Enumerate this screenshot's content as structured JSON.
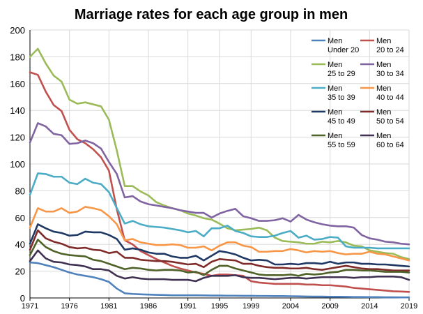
{
  "chart_data": {
    "type": "line",
    "title": "Marriage rates for each age group in men",
    "xlabel": "",
    "ylabel": "",
    "xlim": [
      1971,
      2019
    ],
    "ylim": [
      0,
      200
    ],
    "x_ticks": [
      1971,
      1976,
      1981,
      1986,
      1991,
      1995,
      1999,
      2004,
      2009,
      2014,
      2019
    ],
    "y_ticks": [
      0,
      20,
      40,
      60,
      80,
      100,
      120,
      140,
      160,
      180,
      200
    ],
    "grid": true,
    "legend_position": "top-right",
    "x": [
      1971,
      1972,
      1973,
      1974,
      1975,
      1976,
      1977,
      1978,
      1979,
      1980,
      1981,
      1982,
      1983,
      1984,
      1985,
      1986,
      1987,
      1988,
      1989,
      1990,
      1991,
      1992,
      1993,
      1994,
      1995,
      1996,
      1997,
      1998,
      1999,
      2000,
      2001,
      2002,
      2003,
      2004,
      2005,
      2006,
      2007,
      2008,
      2009,
      2010,
      2011,
      2012,
      2013,
      2014,
      2015,
      2016,
      2017,
      2018,
      2019
    ],
    "series": [
      {
        "name": "Men Under 20",
        "label_line1": "Men",
        "label_line2": "Under 20",
        "color": "#4f81bd",
        "values": [
          26.5,
          26.0,
          24.5,
          23.0,
          21.0,
          19.0,
          17.5,
          16.5,
          15.5,
          14.0,
          12.0,
          7.0,
          3.5,
          3.0,
          2.7,
          2.5,
          2.3,
          2.2,
          2.0,
          2.0,
          2.0,
          2.0,
          1.9,
          1.8,
          1.8,
          1.7,
          1.7,
          1.6,
          1.6,
          1.5,
          1.5,
          1.4,
          1.4,
          1.3,
          1.2,
          1.1,
          1.0,
          1.0,
          0.9,
          0.9,
          0.8,
          0.7,
          0.7,
          0.6,
          0.6,
          0.5,
          0.5,
          0.4,
          0.4
        ]
      },
      {
        "name": "Men 20 to 24",
        "label_line1": "Men",
        "label_line2": "20 to 24",
        "color": "#c0504d",
        "values": [
          168.5,
          166.5,
          154.0,
          144.0,
          139.5,
          125.5,
          118.5,
          115.5,
          111.0,
          105.0,
          95.0,
          66.0,
          43.0,
          40.0,
          35.0,
          32.0,
          29.0,
          26.5,
          24.0,
          22.0,
          20.5,
          19.0,
          18.0,
          16.5,
          17.5,
          17.5,
          17.0,
          16.5,
          12.5,
          11.5,
          11.0,
          10.5,
          10.5,
          10.5,
          10.5,
          10.0,
          10.0,
          9.5,
          9.5,
          9.0,
          8.5,
          7.5,
          7.0,
          6.5,
          6.0,
          5.5,
          5.0,
          4.8,
          4.5
        ]
      },
      {
        "name": "Men 25 to 29",
        "label_line1": "Men",
        "label_line2": "25 to 29",
        "color": "#9bbb59",
        "values": [
          180.0,
          186.0,
          175.0,
          166.0,
          161.5,
          148.0,
          145.0,
          146.0,
          144.5,
          143.0,
          133.0,
          110.0,
          83.5,
          83.5,
          79.5,
          76.5,
          71.5,
          69.0,
          67.0,
          65.5,
          63.0,
          61.5,
          59.5,
          58.5,
          55.5,
          52.0,
          50.5,
          51.0,
          51.5,
          52.5,
          50.5,
          45.0,
          42.5,
          42.0,
          41.5,
          40.5,
          40.5,
          42.0,
          41.5,
          42.5,
          41.5,
          39.0,
          38.5,
          35.5,
          34.5,
          33.5,
          33.0,
          30.5,
          29.0
        ]
      },
      {
        "name": "Men 30 to 34",
        "label_line1": "Men",
        "label_line2": "30 to 34",
        "color": "#8064a2",
        "values": [
          116.0,
          130.5,
          128.0,
          122.5,
          121.5,
          115.0,
          115.5,
          117.5,
          115.5,
          111.5,
          101.5,
          92.5,
          75.0,
          76.0,
          72.0,
          70.0,
          69.0,
          68.0,
          67.0,
          65.5,
          64.5,
          63.5,
          63.5,
          60.0,
          63.0,
          65.0,
          66.5,
          61.0,
          59.5,
          57.5,
          57.5,
          58.0,
          59.5,
          57.0,
          62.0,
          58.5,
          56.5,
          55.0,
          54.0,
          53.5,
          53.5,
          52.5,
          47.0,
          44.5,
          43.5,
          42.0,
          41.5,
          40.5,
          40.0
        ]
      },
      {
        "name": "Men 35 to 39",
        "label_line1": "Men",
        "label_line2": "35 to 39",
        "color": "#4bacc6",
        "values": [
          77.0,
          93.0,
          92.5,
          90.5,
          90.5,
          86.0,
          85.0,
          89.0,
          86.0,
          85.0,
          79.0,
          67.0,
          55.5,
          57.5,
          55.0,
          53.5,
          53.0,
          52.5,
          51.5,
          50.5,
          49.0,
          50.0,
          46.0,
          52.0,
          52.0,
          54.0,
          50.0,
          48.5,
          46.0,
          45.5,
          45.5,
          46.5,
          48.5,
          50.0,
          45.0,
          46.5,
          43.5,
          44.0,
          45.5,
          45.0,
          38.5,
          37.5,
          37.5,
          37.5,
          37.0,
          37.0,
          37.0,
          37.0,
          37.0
        ]
      },
      {
        "name": "Men 40 to 44",
        "label_line1": "Men",
        "label_line2": "40 to 44",
        "color": "#f79646",
        "values": [
          52.5,
          67.0,
          64.5,
          64.5,
          67.0,
          63.5,
          64.5,
          68.0,
          67.0,
          65.5,
          61.0,
          55.0,
          43.0,
          44.0,
          41.5,
          40.5,
          39.5,
          39.5,
          40.0,
          39.5,
          37.5,
          37.5,
          38.5,
          35.5,
          39.0,
          41.5,
          41.5,
          39.0,
          38.0,
          34.5,
          34.5,
          35.0,
          35.0,
          36.5,
          35.5,
          34.0,
          35.0,
          34.5,
          35.0,
          33.5,
          32.5,
          33.0,
          33.0,
          34.5,
          33.0,
          32.5,
          31.0,
          29.5,
          28.0
        ]
      },
      {
        "name": "Men 45 to 49",
        "label_line1": "Men",
        "label_line2": "45 to 49",
        "color": "#1f3864",
        "values": [
          40.5,
          55.0,
          52.0,
          49.5,
          48.5,
          46.5,
          47.0,
          49.5,
          49.0,
          49.0,
          47.0,
          44.0,
          36.0,
          37.0,
          36.0,
          34.0,
          33.0,
          33.0,
          31.0,
          30.0,
          30.0,
          31.5,
          28.0,
          31.5,
          35.0,
          34.0,
          32.5,
          30.0,
          28.0,
          28.5,
          28.0,
          25.0,
          25.0,
          25.5,
          25.0,
          26.0,
          26.0,
          25.5,
          27.0,
          25.5,
          26.5,
          26.5,
          25.5,
          25.5,
          25.0,
          25.0,
          24.5,
          24.0,
          23.5
        ]
      },
      {
        "name": "Men 50 to 54",
        "label_line1": "Men",
        "label_line2": "50 to 54",
        "color": "#7f2b2a",
        "values": [
          36.0,
          50.5,
          44.5,
          42.0,
          40.5,
          38.0,
          37.0,
          37.5,
          36.0,
          35.5,
          33.5,
          34.5,
          30.0,
          30.0,
          28.5,
          28.0,
          27.5,
          27.5,
          27.0,
          26.0,
          25.0,
          25.5,
          23.0,
          27.0,
          29.0,
          28.5,
          28.0,
          25.5,
          25.5,
          24.0,
          23.0,
          22.5,
          22.5,
          22.0,
          22.0,
          22.5,
          21.5,
          21.0,
          22.0,
          23.0,
          24.0,
          23.0,
          22.0,
          21.5,
          21.5,
          21.0,
          20.5,
          20.5,
          20.5
        ]
      },
      {
        "name": "Men 55 to 59",
        "label_line1": "Men",
        "label_line2": "55 to 59",
        "color": "#4f6228",
        "values": [
          32.0,
          43.5,
          38.0,
          35.0,
          33.0,
          32.0,
          31.5,
          31.0,
          28.5,
          27.5,
          25.5,
          23.5,
          21.5,
          22.5,
          22.0,
          21.0,
          20.5,
          21.0,
          21.0,
          20.5,
          19.0,
          19.5,
          17.0,
          21.0,
          24.0,
          24.0,
          22.0,
          20.5,
          19.0,
          17.5,
          17.0,
          17.0,
          17.0,
          17.5,
          16.5,
          18.0,
          17.5,
          18.0,
          19.0,
          19.5,
          21.0,
          21.0,
          20.5,
          20.5,
          20.0,
          19.5,
          19.5,
          19.5,
          19.0
        ]
      },
      {
        "name": "Men 60 to 64",
        "label_line1": "Men",
        "label_line2": "60 to 64",
        "color": "#403152",
        "values": [
          27.5,
          35.5,
          29.5,
          27.0,
          26.5,
          25.0,
          24.5,
          23.5,
          21.5,
          21.5,
          20.5,
          16.5,
          14.5,
          15.5,
          14.5,
          14.0,
          14.0,
          14.0,
          13.5,
          13.5,
          13.5,
          12.5,
          15.0,
          16.5,
          16.5,
          16.5,
          17.0,
          15.5,
          15.0,
          15.0,
          14.5,
          14.0,
          14.5,
          15.0,
          15.0,
          14.5,
          15.0,
          15.5,
          15.5,
          15.5,
          15.5,
          15.0,
          15.5,
          15.5,
          16.0,
          16.0,
          16.0,
          15.5,
          13.5
        ]
      }
    ]
  }
}
